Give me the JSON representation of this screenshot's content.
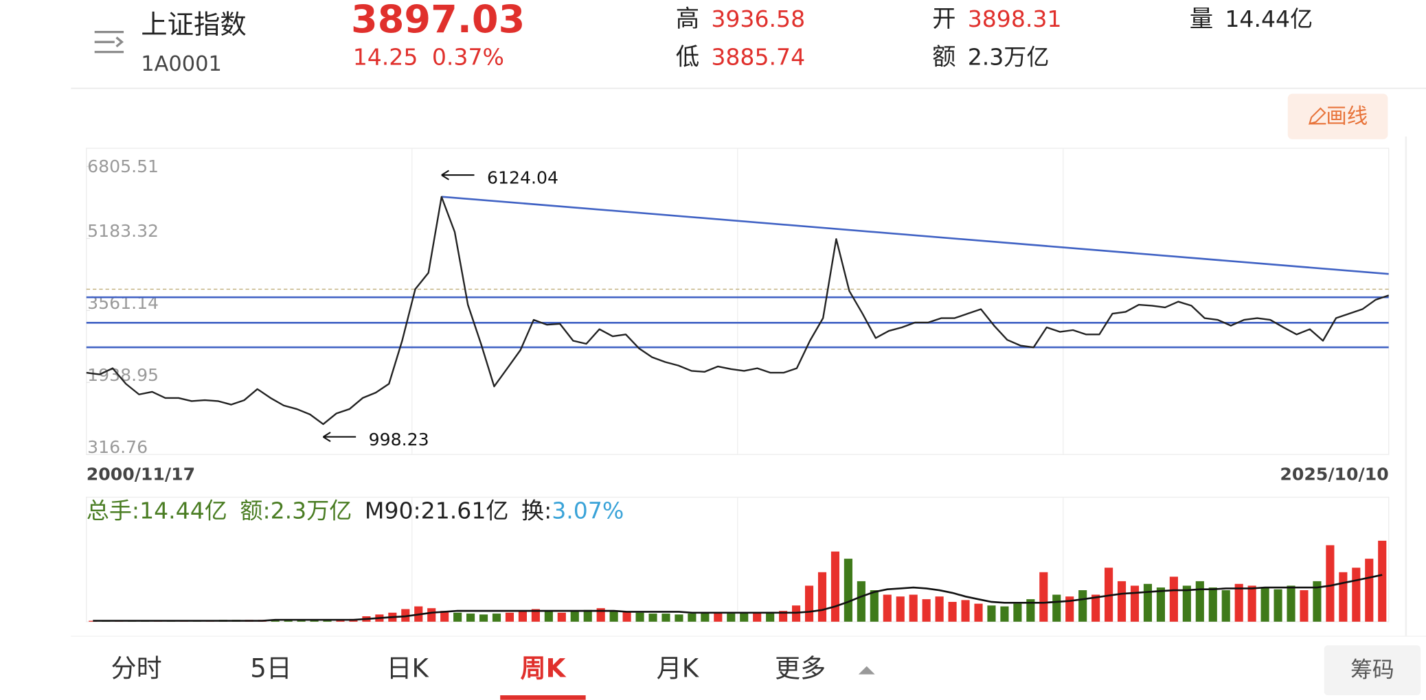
{
  "header": {
    "name": "上证指数",
    "code": "1A0001",
    "price": "3897.03",
    "change": "14.25",
    "change_pct": "0.37%",
    "high_label": "高",
    "high": "3936.58",
    "low_label": "低",
    "low": "3885.74",
    "open_label": "开",
    "open": "3898.31",
    "amount_label": "额",
    "amount": "2.3万亿",
    "volume_label": "量",
    "volume": "14.44亿"
  },
  "draw_button": "画线",
  "chart_data": {
    "type": "line",
    "color": "#222222",
    "categories": [
      "2000/11/17",
      null,
      null,
      null,
      null,
      null,
      null,
      null,
      null,
      null,
      null,
      null,
      null,
      null,
      null,
      null,
      null,
      null,
      null,
      null,
      null,
      null,
      null,
      null,
      null,
      null,
      null,
      null,
      null,
      null,
      null,
      null,
      null,
      null,
      null,
      null,
      null,
      null,
      null,
      null,
      null,
      null,
      null,
      null,
      null,
      null,
      null,
      null,
      null,
      null,
      null,
      null,
      null,
      null,
      null,
      null,
      null,
      null,
      null,
      null,
      null,
      null,
      null,
      null,
      null,
      null,
      null,
      null,
      null,
      null,
      null,
      null,
      null,
      null,
      null,
      null,
      null,
      null,
      null,
      null,
      null,
      null,
      null,
      null,
      null,
      null,
      null,
      null,
      null,
      null,
      null,
      null,
      null,
      null,
      null,
      null,
      null,
      null,
      null,
      "2025/10/10"
    ],
    "values": [
      2160,
      2120,
      2260,
      1910,
      1670,
      1730,
      1590,
      1590,
      1520,
      1540,
      1520,
      1440,
      1540,
      1790,
      1590,
      1420,
      1340,
      1220,
      1000,
      1240,
      1340,
      1590,
      1710,
      1910,
      2880,
      4040,
      4410,
      6120,
      5330,
      3690,
      2810,
      1850,
      2260,
      2670,
      3350,
      3240,
      3260,
      2880,
      2810,
      3140,
      2980,
      3020,
      2710,
      2510,
      2400,
      2320,
      2200,
      2180,
      2300,
      2240,
      2200,
      2260,
      2160,
      2160,
      2260,
      2880,
      3390,
      5170,
      4000,
      3490,
      2940,
      3100,
      3180,
      3290,
      3290,
      3390,
      3390,
      3490,
      3590,
      3220,
      2900,
      2770,
      2730,
      3180,
      3080,
      3120,
      3020,
      3020,
      3490,
      3530,
      3690,
      3670,
      3630,
      3760,
      3670,
      3390,
      3350,
      3220,
      3350,
      3390,
      3350,
      3180,
      3020,
      3140,
      2880,
      3390,
      3490,
      3590,
      3800,
      3900
    ],
    "ylim": [
      316.76,
      6805.51
    ],
    "yticks": [
      6805.51,
      5183.32,
      3561.14,
      1938.95,
      316.76
    ],
    "annotations": {
      "max": "6124.04",
      "min": "998.23"
    },
    "support_lines": [
      3858,
      3285,
      2732
    ],
    "support_color": "#4062c4",
    "trend_line": [
      6124,
      4384
    ],
    "dashed_line": 4040,
    "dashed_color": "#bfae7a",
    "volume": {
      "values": [
        1,
        1,
        1,
        1,
        1,
        1,
        1,
        1,
        1,
        1,
        2,
        2,
        2,
        2,
        2,
        2,
        2,
        2,
        2,
        2,
        3,
        6,
        8,
        10,
        14,
        17,
        15,
        12,
        10,
        9,
        8,
        9,
        10,
        12,
        14,
        12,
        10,
        11,
        13,
        15,
        12,
        11,
        10,
        9,
        9,
        8,
        9,
        10,
        10,
        9,
        10,
        10,
        11,
        12,
        18,
        40,
        55,
        78,
        70,
        45,
        35,
        30,
        28,
        30,
        25,
        28,
        22,
        24,
        20,
        18,
        17,
        20,
        25,
        55,
        30,
        28,
        35,
        30,
        60,
        45,
        40,
        42,
        38,
        50,
        40,
        45,
        38,
        35,
        42,
        40,
        38,
        36,
        40,
        35,
        45,
        85,
        55,
        60,
        70,
        90
      ],
      "ma_values": [
        1,
        1,
        1,
        1,
        1,
        1,
        1,
        1,
        1,
        1,
        1,
        1,
        1,
        1,
        2,
        2,
        2,
        2,
        2,
        2,
        2,
        3,
        4,
        5,
        6,
        8,
        10,
        11,
        12,
        12,
        12,
        12,
        12,
        12,
        12,
        12,
        12,
        12,
        12,
        12,
        12,
        11,
        11,
        11,
        11,
        11,
        10,
        10,
        10,
        10,
        10,
        10,
        10,
        10,
        10,
        11,
        13,
        17,
        22,
        28,
        33,
        36,
        37,
        38,
        37,
        35,
        32,
        28,
        25,
        22,
        21,
        21,
        21,
        21,
        22,
        23,
        25,
        27,
        29,
        31,
        32,
        33,
        34,
        35,
        35,
        36,
        36,
        37,
        37,
        37,
        38,
        38,
        38,
        38,
        38,
        40,
        43,
        46,
        49,
        52
      ],
      "ylim": [
        0,
        100
      ],
      "up_color": "#e8312c",
      "down_color": "#3f7a1a",
      "ma_color": "#111111",
      "legend": [
        {
          "text": "总手:14.44亿",
          "color": "#4a7d23"
        },
        {
          "text": "额:2.3万亿",
          "color": "#4a7d23"
        },
        {
          "text": "M90:21.61亿",
          "color": "#222222"
        },
        {
          "text": "换:",
          "color": "#222222"
        },
        {
          "text": "3.07%",
          "color": "#3aa3d8"
        }
      ]
    }
  },
  "tabs": [
    "分时",
    "5日",
    "日K",
    "周K",
    "月K",
    "更多"
  ],
  "active_tab": "周K",
  "chips_button": "筹码"
}
